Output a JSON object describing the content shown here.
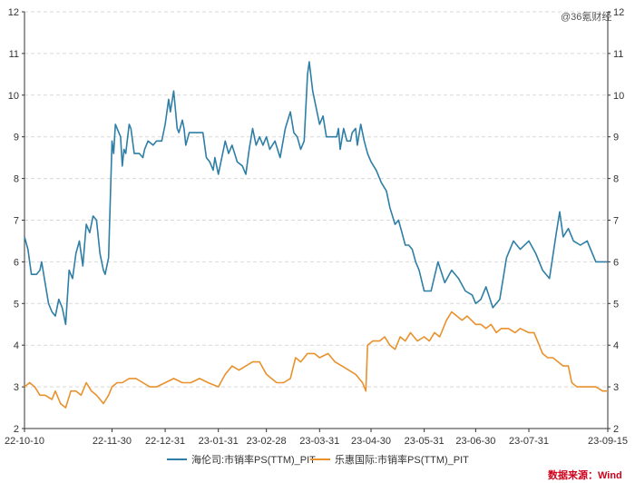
{
  "watermark": "@36氪财经",
  "source": "数据来源：Wind",
  "chart_data": {
    "type": "line",
    "title": "",
    "xlabel": "",
    "ylabel": "",
    "ylim": [
      2,
      12
    ],
    "yticks": [
      2,
      3,
      4,
      5,
      6,
      7,
      8,
      9,
      10,
      11,
      12
    ],
    "grid": true,
    "legend_position": "bottom",
    "x_start": "2022-10-10",
    "x_end": "2023-09-15",
    "xtick_labels": [
      {
        "date": "2022-10-10",
        "label": "22-10-10"
      },
      {
        "date": "2022-11-30",
        "label": "22-11-30"
      },
      {
        "date": "2022-12-31",
        "label": "22-12-31"
      },
      {
        "date": "2023-01-31",
        "label": "23-01-31"
      },
      {
        "date": "2023-02-28",
        "label": "23-02-28"
      },
      {
        "date": "2023-03-31",
        "label": "23-03-31"
      },
      {
        "date": "2023-04-30",
        "label": "23-04-30"
      },
      {
        "date": "2023-05-31",
        "label": "23-05-31"
      },
      {
        "date": "2023-06-30",
        "label": "23-06-30"
      },
      {
        "date": "2023-07-31",
        "label": "23-07-31"
      },
      {
        "date": "2023-09-15",
        "label": "23-09-15"
      }
    ],
    "series": [
      {
        "name": "海伦司:市销率PS(TTM)_PIT",
        "color": "#2e7ea6",
        "points": [
          [
            "2022-10-10",
            6.6
          ],
          [
            "2022-10-12",
            6.3
          ],
          [
            "2022-10-14",
            5.7
          ],
          [
            "2022-10-17",
            5.7
          ],
          [
            "2022-10-19",
            5.8
          ],
          [
            "2022-10-20",
            6.0
          ],
          [
            "2022-10-22",
            5.5
          ],
          [
            "2022-10-24",
            5.0
          ],
          [
            "2022-10-26",
            4.8
          ],
          [
            "2022-10-28",
            4.7
          ],
          [
            "2022-10-30",
            5.1
          ],
          [
            "2022-11-01",
            4.9
          ],
          [
            "2022-11-03",
            4.5
          ],
          [
            "2022-11-05",
            5.8
          ],
          [
            "2022-11-07",
            5.6
          ],
          [
            "2022-11-09",
            6.2
          ],
          [
            "2022-11-11",
            6.5
          ],
          [
            "2022-11-13",
            5.9
          ],
          [
            "2022-11-15",
            6.9
          ],
          [
            "2022-11-17",
            6.7
          ],
          [
            "2022-11-19",
            7.1
          ],
          [
            "2022-11-21",
            7.0
          ],
          [
            "2022-11-23",
            6.2
          ],
          [
            "2022-11-25",
            5.8
          ],
          [
            "2022-11-26",
            5.7
          ],
          [
            "2022-11-28",
            6.1
          ],
          [
            "2022-11-30",
            8.9
          ],
          [
            "2022-12-01",
            8.6
          ],
          [
            "2022-12-02",
            9.3
          ],
          [
            "2022-12-05",
            9.0
          ],
          [
            "2022-12-06",
            8.3
          ],
          [
            "2022-12-07",
            8.7
          ],
          [
            "2022-12-08",
            8.6
          ],
          [
            "2022-12-10",
            9.3
          ],
          [
            "2022-12-11",
            9.2
          ],
          [
            "2022-12-13",
            8.6
          ],
          [
            "2022-12-16",
            8.6
          ],
          [
            "2022-12-18",
            8.5
          ],
          [
            "2022-12-19",
            8.7
          ],
          [
            "2022-12-21",
            8.9
          ],
          [
            "2022-12-24",
            8.8
          ],
          [
            "2022-12-26",
            8.9
          ],
          [
            "2022-12-29",
            8.9
          ],
          [
            "2022-12-31",
            9.3
          ],
          [
            "2023-01-02",
            9.9
          ],
          [
            "2023-01-03",
            9.6
          ],
          [
            "2023-01-05",
            10.1
          ],
          [
            "2023-01-07",
            9.2
          ],
          [
            "2023-01-08",
            9.1
          ],
          [
            "2023-01-10",
            9.4
          ],
          [
            "2023-01-11",
            9.2
          ],
          [
            "2023-01-12",
            8.8
          ],
          [
            "2023-01-14",
            9.1
          ],
          [
            "2023-01-16",
            9.1
          ],
          [
            "2023-01-18",
            9.1
          ],
          [
            "2023-01-20",
            9.1
          ],
          [
            "2023-01-22",
            9.1
          ],
          [
            "2023-01-24",
            8.5
          ],
          [
            "2023-01-26",
            8.4
          ],
          [
            "2023-01-28",
            8.2
          ],
          [
            "2023-01-29",
            8.5
          ],
          [
            "2023-01-31",
            8.1
          ],
          [
            "2023-02-02",
            8.5
          ],
          [
            "2023-02-04",
            8.9
          ],
          [
            "2023-02-06",
            8.6
          ],
          [
            "2023-02-08",
            8.8
          ],
          [
            "2023-02-11",
            8.4
          ],
          [
            "2023-02-14",
            8.3
          ],
          [
            "2023-02-16",
            8.1
          ],
          [
            "2023-02-18",
            8.7
          ],
          [
            "2023-02-20",
            9.2
          ],
          [
            "2023-02-22",
            8.8
          ],
          [
            "2023-02-24",
            9.0
          ],
          [
            "2023-02-26",
            8.8
          ],
          [
            "2023-02-28",
            9.0
          ],
          [
            "2023-03-02",
            8.7
          ],
          [
            "2023-03-05",
            8.9
          ],
          [
            "2023-03-08",
            8.5
          ],
          [
            "2023-03-11",
            9.2
          ],
          [
            "2023-03-14",
            9.6
          ],
          [
            "2023-03-16",
            9.1
          ],
          [
            "2023-03-18",
            9.0
          ],
          [
            "2023-03-20",
            8.7
          ],
          [
            "2023-03-22",
            8.9
          ],
          [
            "2023-03-24",
            10.5
          ],
          [
            "2023-03-25",
            10.8
          ],
          [
            "2023-03-27",
            10.1
          ],
          [
            "2023-03-29",
            9.7
          ],
          [
            "2023-03-31",
            9.3
          ],
          [
            "2023-04-02",
            9.5
          ],
          [
            "2023-04-04",
            9.0
          ],
          [
            "2023-04-07",
            9.0
          ],
          [
            "2023-04-10",
            9.0
          ],
          [
            "2023-04-11",
            9.2
          ],
          [
            "2023-04-12",
            8.7
          ],
          [
            "2023-04-14",
            9.2
          ],
          [
            "2023-04-16",
            8.9
          ],
          [
            "2023-04-18",
            8.9
          ],
          [
            "2023-04-19",
            9.1
          ],
          [
            "2023-04-21",
            9.2
          ],
          [
            "2023-04-22",
            8.8
          ],
          [
            "2023-04-24",
            9.3
          ],
          [
            "2023-04-26",
            8.9
          ],
          [
            "2023-04-28",
            8.6
          ],
          [
            "2023-04-30",
            8.4
          ],
          [
            "2023-05-03",
            8.2
          ],
          [
            "2023-05-06",
            7.9
          ],
          [
            "2023-05-09",
            7.7
          ],
          [
            "2023-05-11",
            7.3
          ],
          [
            "2023-05-14",
            6.9
          ],
          [
            "2023-05-16",
            7.0
          ],
          [
            "2023-05-18",
            6.7
          ],
          [
            "2023-05-20",
            6.4
          ],
          [
            "2023-05-22",
            6.4
          ],
          [
            "2023-05-24",
            6.3
          ],
          [
            "2023-05-26",
            6.0
          ],
          [
            "2023-05-28",
            5.8
          ],
          [
            "2023-05-31",
            5.3
          ],
          [
            "2023-06-04",
            5.3
          ],
          [
            "2023-06-08",
            6.0
          ],
          [
            "2023-06-12",
            5.5
          ],
          [
            "2023-06-16",
            5.8
          ],
          [
            "2023-06-20",
            5.6
          ],
          [
            "2023-06-24",
            5.3
          ],
          [
            "2023-06-28",
            5.2
          ],
          [
            "2023-06-30",
            5.0
          ],
          [
            "2023-07-03",
            5.1
          ],
          [
            "2023-07-06",
            5.4
          ],
          [
            "2023-07-10",
            4.9
          ],
          [
            "2023-07-14",
            5.1
          ],
          [
            "2023-07-18",
            6.1
          ],
          [
            "2023-07-22",
            6.5
          ],
          [
            "2023-07-26",
            6.3
          ],
          [
            "2023-07-31",
            6.5
          ],
          [
            "2023-08-04",
            6.2
          ],
          [
            "2023-08-08",
            5.8
          ],
          [
            "2023-08-12",
            5.6
          ],
          [
            "2023-08-16",
            6.7
          ],
          [
            "2023-08-18",
            7.2
          ],
          [
            "2023-08-20",
            6.6
          ],
          [
            "2023-08-23",
            6.8
          ],
          [
            "2023-08-26",
            6.5
          ],
          [
            "2023-08-30",
            6.4
          ],
          [
            "2023-09-03",
            6.5
          ],
          [
            "2023-09-08",
            6.0
          ],
          [
            "2023-09-15",
            6.0
          ]
        ]
      },
      {
        "name": "乐惠国际:市销率PS(TTM)_PIT",
        "color": "#e8912d",
        "points": [
          [
            "2022-10-10",
            3.0
          ],
          [
            "2022-10-13",
            3.1
          ],
          [
            "2022-10-16",
            3.0
          ],
          [
            "2022-10-19",
            2.8
          ],
          [
            "2022-10-22",
            2.8
          ],
          [
            "2022-10-26",
            2.7
          ],
          [
            "2022-10-28",
            2.9
          ],
          [
            "2022-10-31",
            2.6
          ],
          [
            "2022-11-03",
            2.5
          ],
          [
            "2022-11-06",
            2.9
          ],
          [
            "2022-11-09",
            2.9
          ],
          [
            "2022-11-12",
            2.8
          ],
          [
            "2022-11-15",
            3.1
          ],
          [
            "2022-11-18",
            2.9
          ],
          [
            "2022-11-21",
            2.8
          ],
          [
            "2022-11-25",
            2.6
          ],
          [
            "2022-11-28",
            2.8
          ],
          [
            "2022-11-30",
            3.0
          ],
          [
            "2022-12-03",
            3.1
          ],
          [
            "2022-12-06",
            3.1
          ],
          [
            "2022-12-10",
            3.2
          ],
          [
            "2022-12-14",
            3.2
          ],
          [
            "2022-12-18",
            3.1
          ],
          [
            "2022-12-22",
            3.0
          ],
          [
            "2022-12-26",
            3.0
          ],
          [
            "2022-12-31",
            3.1
          ],
          [
            "2023-01-05",
            3.2
          ],
          [
            "2023-01-10",
            3.1
          ],
          [
            "2023-01-15",
            3.1
          ],
          [
            "2023-01-20",
            3.2
          ],
          [
            "2023-01-25",
            3.1
          ],
          [
            "2023-01-31",
            3.0
          ],
          [
            "2023-02-04",
            3.3
          ],
          [
            "2023-02-08",
            3.5
          ],
          [
            "2023-02-12",
            3.4
          ],
          [
            "2023-02-16",
            3.5
          ],
          [
            "2023-02-20",
            3.6
          ],
          [
            "2023-02-24",
            3.6
          ],
          [
            "2023-02-28",
            3.3
          ],
          [
            "2023-03-03",
            3.2
          ],
          [
            "2023-03-06",
            3.1
          ],
          [
            "2023-03-10",
            3.1
          ],
          [
            "2023-03-14",
            3.2
          ],
          [
            "2023-03-17",
            3.7
          ],
          [
            "2023-03-20",
            3.6
          ],
          [
            "2023-03-24",
            3.8
          ],
          [
            "2023-03-28",
            3.8
          ],
          [
            "2023-03-31",
            3.7
          ],
          [
            "2023-04-05",
            3.8
          ],
          [
            "2023-04-09",
            3.6
          ],
          [
            "2023-04-13",
            3.5
          ],
          [
            "2023-04-17",
            3.4
          ],
          [
            "2023-04-21",
            3.3
          ],
          [
            "2023-04-25",
            3.1
          ],
          [
            "2023-04-27",
            2.9
          ],
          [
            "2023-04-28",
            4.0
          ],
          [
            "2023-05-01",
            4.1
          ],
          [
            "2023-05-05",
            4.1
          ],
          [
            "2023-05-08",
            4.2
          ],
          [
            "2023-05-11",
            4.0
          ],
          [
            "2023-05-14",
            3.9
          ],
          [
            "2023-05-17",
            4.2
          ],
          [
            "2023-05-20",
            4.1
          ],
          [
            "2023-05-23",
            4.3
          ],
          [
            "2023-05-27",
            4.1
          ],
          [
            "2023-05-31",
            4.2
          ],
          [
            "2023-06-03",
            4.1
          ],
          [
            "2023-06-06",
            4.3
          ],
          [
            "2023-06-09",
            4.2
          ],
          [
            "2023-06-13",
            4.6
          ],
          [
            "2023-06-16",
            4.8
          ],
          [
            "2023-06-19",
            4.7
          ],
          [
            "2023-06-22",
            4.6
          ],
          [
            "2023-06-25",
            4.7
          ],
          [
            "2023-06-30",
            4.5
          ],
          [
            "2023-07-03",
            4.5
          ],
          [
            "2023-07-06",
            4.4
          ],
          [
            "2023-07-09",
            4.5
          ],
          [
            "2023-07-12",
            4.3
          ],
          [
            "2023-07-15",
            4.4
          ],
          [
            "2023-07-19",
            4.4
          ],
          [
            "2023-07-23",
            4.3
          ],
          [
            "2023-07-26",
            4.4
          ],
          [
            "2023-07-31",
            4.3
          ],
          [
            "2023-08-03",
            4.3
          ],
          [
            "2023-08-06",
            4.0
          ],
          [
            "2023-08-08",
            3.8
          ],
          [
            "2023-08-11",
            3.7
          ],
          [
            "2023-08-14",
            3.7
          ],
          [
            "2023-08-17",
            3.6
          ],
          [
            "2023-08-20",
            3.5
          ],
          [
            "2023-08-23",
            3.5
          ],
          [
            "2023-08-25",
            3.1
          ],
          [
            "2023-08-28",
            3.0
          ],
          [
            "2023-08-31",
            3.0
          ],
          [
            "2023-09-04",
            3.0
          ],
          [
            "2023-09-08",
            3.0
          ],
          [
            "2023-09-12",
            2.9
          ],
          [
            "2023-09-15",
            2.9
          ]
        ]
      }
    ]
  }
}
